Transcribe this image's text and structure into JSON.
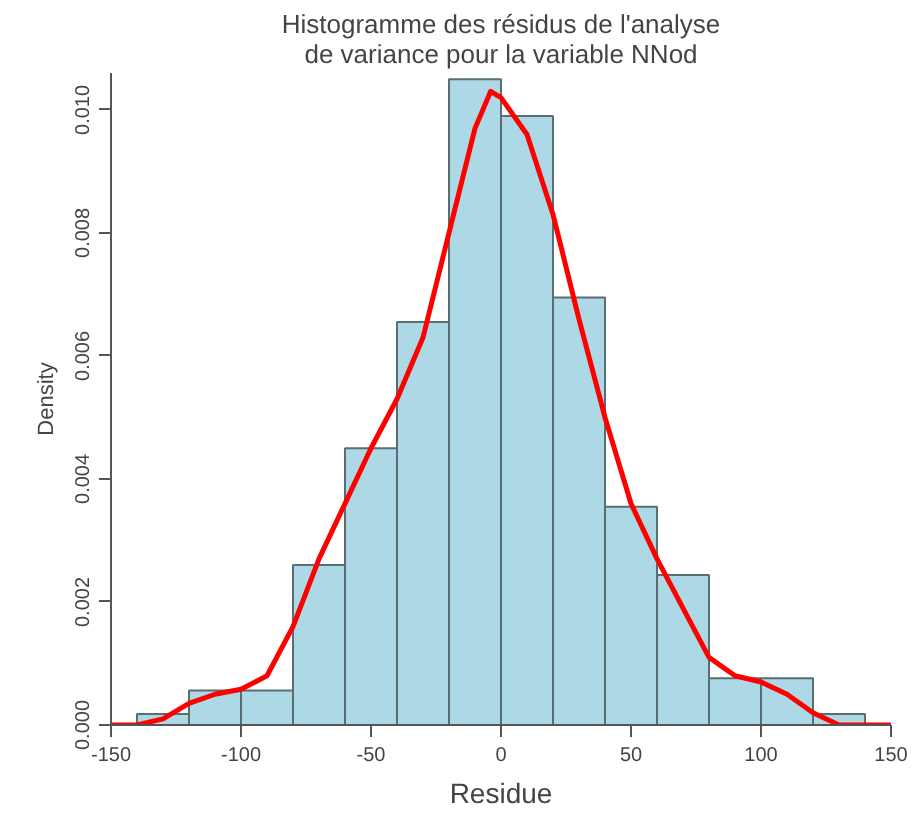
{
  "chart_data": {
    "type": "histogram",
    "title": "Histogramme des résidus de l'analyse\nde variance pour la variable NNod",
    "xlabel": "Residue",
    "ylabel": "Density",
    "bins": [
      -140,
      -120,
      -100,
      -80,
      -60,
      -40,
      -20,
      0,
      20,
      40,
      60,
      80,
      100,
      120,
      140
    ],
    "values": [
      0.00018,
      0.00056,
      0.00056,
      0.0026,
      0.0045,
      0.00655,
      0.0105,
      0.0099,
      0.00695,
      0.00355,
      0.00244,
      0.00076,
      0.00076,
      0.00018
    ],
    "color": "#add8e6",
    "series": [
      {
        "type": "line",
        "color": "#ff0000",
        "x": [
          -150,
          -140,
          -130,
          -120,
          -110,
          -100,
          -90,
          -80,
          -70,
          -60,
          -50,
          -40,
          -30,
          -20,
          -10,
          -4,
          0,
          10,
          20,
          30,
          40,
          50,
          60,
          70,
          80,
          90,
          100,
          110,
          120,
          130,
          140,
          150
        ],
        "values": [
          0,
          0,
          0.0001,
          0.00035,
          0.0005,
          0.00058,
          0.0008,
          0.0016,
          0.0027,
          0.0036,
          0.0045,
          0.0053,
          0.0063,
          0.008,
          0.0097,
          0.0103,
          0.0102,
          0.0096,
          0.0083,
          0.0066,
          0.005,
          0.0036,
          0.0027,
          0.0019,
          0.0011,
          0.0008,
          0.0007,
          0.0005,
          0.0002,
          0,
          0,
          0
        ]
      }
    ],
    "xlim": [
      -150,
      150
    ],
    "ylim": [
      0,
      0.0106
    ],
    "xticks": [
      -150,
      -100,
      -50,
      0,
      50,
      100,
      150
    ],
    "yticks": [
      {
        "value": 0,
        "label": "0.000"
      },
      {
        "value": 0.002,
        "label": "0.002"
      },
      {
        "value": 0.004,
        "label": "0.004"
      },
      {
        "value": 0.006,
        "label": "0.006"
      },
      {
        "value": 0.008,
        "label": "0.008"
      },
      {
        "value": 0.01,
        "label": "0.010"
      }
    ],
    "grid": false
  }
}
